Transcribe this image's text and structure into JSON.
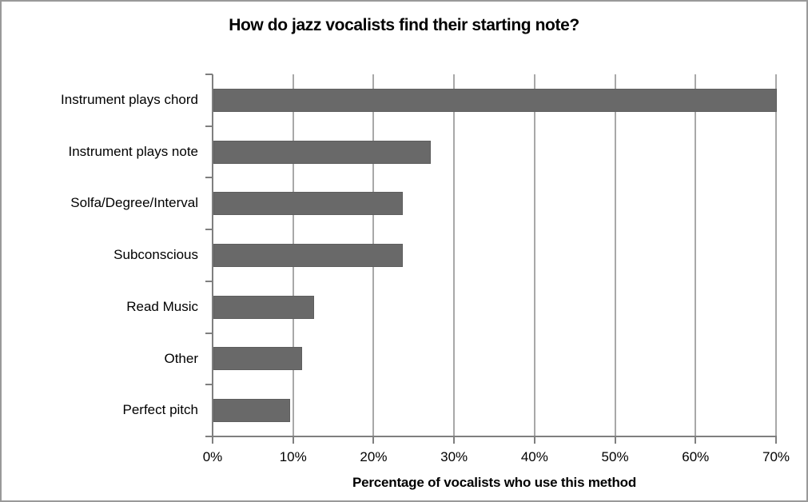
{
  "figure": {
    "background_color": "#ffffff",
    "border_color": "#999999"
  },
  "chart_data": {
    "type": "bar",
    "orientation": "horizontal",
    "title": "How do jazz vocalists find their starting note?",
    "xlabel": "Percentage of vocalists who use this method",
    "ylabel": "",
    "categories": [
      "Instrument plays chord",
      "Instrument plays note",
      "Solfa/Degree/Interval",
      "Subconscious",
      "Read Music",
      "Other",
      "Perfect pitch"
    ],
    "values": [
      70,
      27,
      23.5,
      23.5,
      12.5,
      11,
      9.5
    ],
    "value_unit": "%",
    "xlim": [
      0,
      70
    ],
    "x_tick_values": [
      0,
      10,
      20,
      30,
      40,
      50,
      60,
      70
    ],
    "x_tick_labels": [
      "0%",
      "10%",
      "20%",
      "30%",
      "40%",
      "50%",
      "60%",
      "70%"
    ],
    "grid": true,
    "legend": false,
    "bar_color": "#696969",
    "gridline_color": "#a8a8a8",
    "axis_color": "#7f7f7f",
    "text_color": "#000000"
  }
}
